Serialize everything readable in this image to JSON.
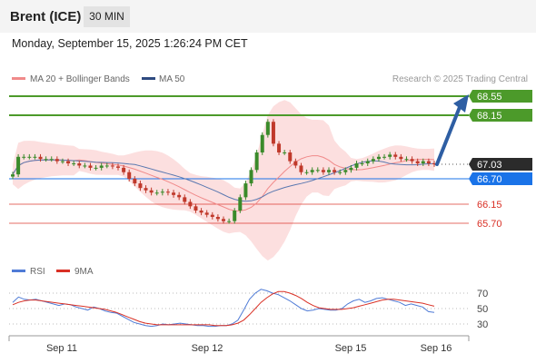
{
  "header": {
    "title": "Brent (ICE)",
    "timeframe": "30 MIN"
  },
  "datetime": "Monday, September 15, 2025 1:26:24 PM CET",
  "legend": {
    "ma20_label": "MA 20 + Bollinger Bands",
    "ma50_label": "MA 50",
    "credit": "Research © 2025 Trading Central",
    "rsi_label": "RSI",
    "ma9_label": "9MA"
  },
  "colors": {
    "price_green": "#4c9a2a",
    "price_blue": "#1a73e8",
    "price_red": "#d93025",
    "current_tag": "#2b2b2b",
    "arrow": "#2e5ea3",
    "bollinger_fill": "#fcd9d9",
    "ma20": "#f08a8a",
    "ma50": "#5a78b0",
    "candle_up": "#3a8a2a",
    "candle_down": "#c0392b",
    "rsi": "#4f7bd6",
    "rsi_ma": "#d93025"
  },
  "chart_data": {
    "type": "candlestick",
    "x_labels": [
      "Sep 11",
      "Sep 12",
      "Sep 15",
      "Sep 16"
    ],
    "price_levels": [
      {
        "value": "68.55",
        "kind": "resistance",
        "color": "green"
      },
      {
        "value": "68.15",
        "kind": "resistance",
        "color": "green"
      },
      {
        "value": "67.03",
        "kind": "current",
        "color": "dark"
      },
      {
        "value": "66.70",
        "kind": "pivot",
        "color": "blue"
      },
      {
        "value": "66.15",
        "kind": "support",
        "color": "red"
      },
      {
        "value": "65.70",
        "kind": "support",
        "color": "red"
      }
    ],
    "forecast": {
      "from": 67.03,
      "to": 68.55,
      "direction": "up"
    },
    "ylim": [
      65.0,
      69.0
    ],
    "close_series": [
      66.8,
      67.2,
      67.2,
      67.2,
      67.2,
      67.15,
      67.15,
      67.15,
      67.1,
      67.1,
      67.05,
      67.05,
      67.0,
      67.0,
      66.95,
      66.95,
      67.0,
      67.0,
      66.98,
      66.95,
      66.85,
      66.7,
      66.6,
      66.5,
      66.45,
      66.4,
      66.4,
      66.42,
      66.4,
      66.35,
      66.3,
      66.2,
      66.1,
      66.0,
      65.95,
      65.9,
      65.85,
      65.8,
      65.75,
      65.75,
      66.0,
      66.3,
      66.6,
      66.9,
      67.3,
      67.7,
      68.0,
      67.5,
      67.3,
      67.3,
      67.1,
      67.0,
      66.85,
      66.85,
      66.9,
      66.9,
      66.85,
      66.9,
      66.85,
      66.85,
      66.9,
      66.95,
      67.05,
      67.05,
      67.1,
      67.15,
      67.2,
      67.2,
      67.25,
      67.2,
      67.15,
      67.15,
      67.1,
      67.05,
      67.1,
      67.05,
      67.03
    ],
    "rsi": {
      "levels": [
        70,
        50,
        30
      ],
      "rsi_values": [
        58,
        65,
        62,
        61,
        62,
        60,
        58,
        56,
        54,
        56,
        55,
        52,
        50,
        48,
        52,
        50,
        47,
        45,
        44,
        40,
        36,
        32,
        30,
        28,
        27,
        28,
        30,
        29,
        30,
        31,
        30,
        29,
        28,
        28,
        27,
        27,
        28,
        28,
        30,
        35,
        48,
        62,
        70,
        75,
        73,
        70,
        68,
        64,
        60,
        55,
        50,
        47,
        48,
        50,
        49,
        48,
        48,
        50,
        56,
        60,
        62,
        58,
        60,
        63,
        64,
        62,
        60,
        58,
        54,
        56,
        54,
        52,
        46,
        45
      ],
      "ma9_values": [
        55,
        58,
        60,
        61,
        61,
        60,
        59,
        58,
        57,
        56,
        55,
        54,
        53,
        52,
        51,
        50,
        49,
        47,
        45,
        42,
        39,
        36,
        33,
        31,
        30,
        29,
        29,
        29,
        29,
        29,
        29,
        29,
        29,
        29,
        29,
        28,
        28,
        28,
        29,
        31,
        35,
        42,
        50,
        58,
        64,
        69,
        72,
        72,
        70,
        67,
        63,
        58,
        54,
        51,
        50,
        49,
        49,
        49,
        50,
        51,
        53,
        55,
        57,
        59,
        61,
        62,
        62,
        61,
        60,
        59,
        58,
        57,
        55,
        53
      ]
    }
  }
}
